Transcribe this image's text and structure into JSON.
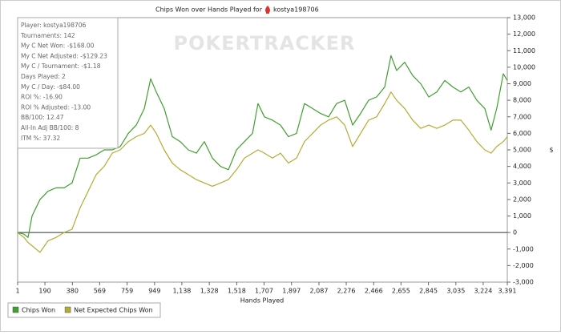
{
  "chart_data": {
    "type": "line",
    "title": "Chips Won over Hands Played for",
    "title_player": "kostya198706",
    "watermark": "POKERTRACKER",
    "xlabel": "Hands Played",
    "ylabel": "$",
    "stats": [
      "Player: kostya198706",
      "Tournaments: 142",
      "My C Net Won: -$168.00",
      "My C Net Adjusted: -$129.23",
      "My C / Tournament: -$1.18",
      "Days Played: 2",
      "My C / Day: -$84.00",
      "ROI %: -16.90",
      "ROI % Adjusted: -13.00",
      "BB/100: 12.47",
      "All-In Adj BB/100: 8",
      "ITM %: 37.32"
    ],
    "xlim": [
      1,
      3391
    ],
    "xticks": [
      1,
      190,
      380,
      569,
      759,
      949,
      {
        "value": 1138,
        "label": "1,138"
      },
      {
        "value": 1328,
        "label": "1,328"
      },
      {
        "value": 1518,
        "label": "1,518"
      },
      {
        "value": 1707,
        "label": "1,707"
      },
      {
        "value": 1897,
        "label": "1,897"
      },
      {
        "value": 2087,
        "label": "2,087"
      },
      {
        "value": 2276,
        "label": "2,276"
      },
      {
        "value": 2466,
        "label": "2,466"
      },
      {
        "value": 2655,
        "label": "2,655"
      },
      {
        "value": 2845,
        "label": "2,845"
      },
      {
        "value": 3035,
        "label": "3,035"
      },
      {
        "value": 3224,
        "label": "3,224"
      },
      {
        "value": 3391,
        "label": "3,391"
      }
    ],
    "ylim": [
      -3000,
      13000
    ],
    "yticks": [
      {
        "value": -3000,
        "label": "-3,000"
      },
      {
        "value": -2000,
        "label": "-2,000"
      },
      {
        "value": -1000,
        "label": "-1,000"
      },
      0,
      {
        "value": 1000,
        "label": "1,000"
      },
      {
        "value": 2000,
        "label": "2,000"
      },
      {
        "value": 3000,
        "label": "3,000"
      },
      {
        "value": 4000,
        "label": "4,000"
      },
      {
        "value": 5000,
        "label": "5,000"
      },
      {
        "value": 6000,
        "label": "6,000"
      },
      {
        "value": 7000,
        "label": "7,000"
      },
      {
        "value": 8000,
        "label": "8,000"
      },
      {
        "value": 9000,
        "label": "9,000"
      },
      {
        "value": 10000,
        "label": "10,000"
      },
      {
        "value": 11000,
        "label": "11,000"
      },
      {
        "value": 12000,
        "label": "12,000"
      },
      {
        "value": 13000,
        "label": "13,000"
      }
    ],
    "grid": false,
    "legend": "bottom-left",
    "x": [
      1,
      45,
      73,
      101,
      156,
      212,
      267,
      323,
      378,
      434,
      489,
      545,
      600,
      656,
      711,
      767,
      822,
      878,
      922,
      961,
      1016,
      1072,
      1127,
      1183,
      1238,
      1294,
      1349,
      1405,
      1460,
      1516,
      1571,
      1627,
      1665,
      1710,
      1765,
      1821,
      1876,
      1932,
      1987,
      2043,
      2098,
      2154,
      2209,
      2265,
      2320,
      2375,
      2431,
      2486,
      2542,
      2586,
      2625,
      2681,
      2736,
      2792,
      2847,
      2903,
      2958,
      3014,
      3069,
      3124,
      3180,
      3235,
      3279,
      3318,
      3363,
      3391
    ],
    "series": [
      {
        "name": "Chips Won",
        "color": "#3f9f2f",
        "values": [
          0,
          -100,
          -300,
          1000,
          2000,
          2500,
          2700,
          2700,
          3000,
          4500,
          4500,
          4700,
          5000,
          5000,
          5200,
          6000,
          6500,
          7500,
          9300,
          8500,
          7500,
          5800,
          5500,
          5000,
          4800,
          5500,
          4500,
          4000,
          3800,
          5000,
          5500,
          6000,
          7800,
          7000,
          6800,
          6500,
          5800,
          6000,
          7800,
          7500,
          7200,
          7000,
          7800,
          8000,
          6500,
          7200,
          8000,
          8200,
          8800,
          10700,
          9800,
          10300,
          9500,
          9000,
          8200,
          8500,
          9200,
          8800,
          8500,
          8800,
          8000,
          7500,
          6200,
          7500,
          9600,
          9200
        ]
      },
      {
        "name": "Net Expected Chips Won",
        "color": "#b3ac33",
        "values": [
          0,
          -300,
          -600,
          -800,
          -1200,
          -500,
          -300,
          0,
          200,
          1500,
          2500,
          3500,
          4000,
          4800,
          5000,
          5500,
          5800,
          6000,
          6500,
          6000,
          5000,
          4200,
          3800,
          3500,
          3200,
          3000,
          2800,
          3000,
          3200,
          3800,
          4500,
          4800,
          5000,
          4800,
          4500,
          4800,
          4200,
          4500,
          5500,
          6000,
          6500,
          6800,
          7000,
          6500,
          5200,
          6000,
          6800,
          7000,
          7800,
          8500,
          8000,
          7500,
          6800,
          6300,
          6500,
          6300,
          6500,
          6800,
          6800,
          6200,
          5500,
          5000,
          4800,
          5200,
          5500,
          5800
        ]
      }
    ]
  }
}
